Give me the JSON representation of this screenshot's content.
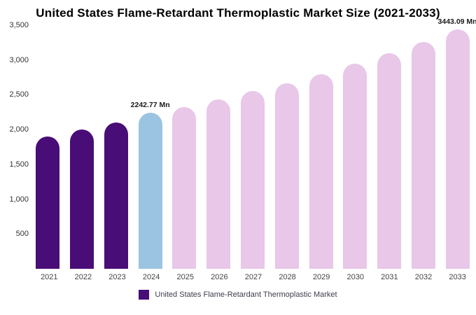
{
  "chart_data": {
    "type": "bar",
    "title": "United States Flame-Retardant Thermoplastic Market Size (2021-2033)",
    "xlabel": "",
    "ylabel": "",
    "unit": "Mn",
    "categories": [
      "2021",
      "2022",
      "2023",
      "2024",
      "2025",
      "2026",
      "2027",
      "2028",
      "2029",
      "2030",
      "2031",
      "2032",
      "2033"
    ],
    "values": [
      1900,
      2000,
      2100,
      2242.77,
      2320,
      2430,
      2550,
      2670,
      2800,
      2950,
      3100,
      3260,
      3443.09
    ],
    "bar_colors": [
      "#490d77",
      "#490d77",
      "#490d77",
      "#9ac4e1",
      "#e8c7e8",
      "#e8c7e8",
      "#e8c7e8",
      "#e8c7e8",
      "#e8c7e8",
      "#e8c7e8",
      "#e8c7e8",
      "#e8c7e8",
      "#e8c7e8"
    ],
    "annotations": [
      {
        "index": 3,
        "text": "2242.77 Mn"
      },
      {
        "index": 12,
        "text": "3443.09 Mn"
      }
    ],
    "ylim": [
      0,
      3500
    ],
    "yticks": [
      "3,500",
      "3,000",
      "2,500",
      "2,000",
      "1,500",
      "1,000",
      "500"
    ],
    "grid": false,
    "legend_position": "bottom",
    "legend": {
      "label": "United States Flame-Retardant Thermoplastic Market",
      "color": "#490d77"
    }
  }
}
